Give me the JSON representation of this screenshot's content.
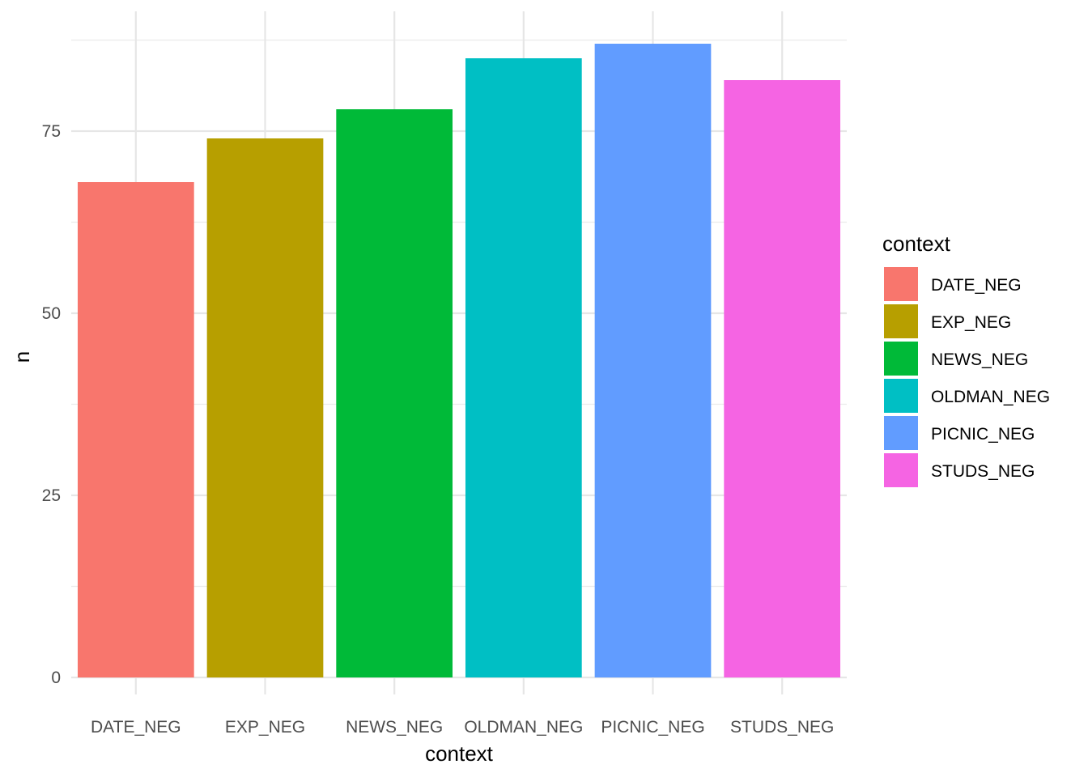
{
  "chart_data": {
    "type": "bar",
    "categories": [
      "DATE_NEG",
      "EXP_NEG",
      "NEWS_NEG",
      "OLDMAN_NEG",
      "PICNIC_NEG",
      "STUDS_NEG"
    ],
    "values": [
      68,
      74,
      78,
      85,
      87,
      82
    ],
    "colors": [
      "#F8766D",
      "#B79F00",
      "#00BA38",
      "#00BFC4",
      "#619CFF",
      "#F564E3"
    ],
    "xlabel": "context",
    "ylabel": "n",
    "ylim": [
      0,
      90
    ],
    "yticks": [
      0,
      25,
      50,
      75
    ],
    "grid": true,
    "legend": {
      "title": "context",
      "position": "right",
      "entries": [
        "DATE_NEG",
        "EXP_NEG",
        "NEWS_NEG",
        "OLDMAN_NEG",
        "PICNIC_NEG",
        "STUDS_NEG"
      ]
    }
  }
}
